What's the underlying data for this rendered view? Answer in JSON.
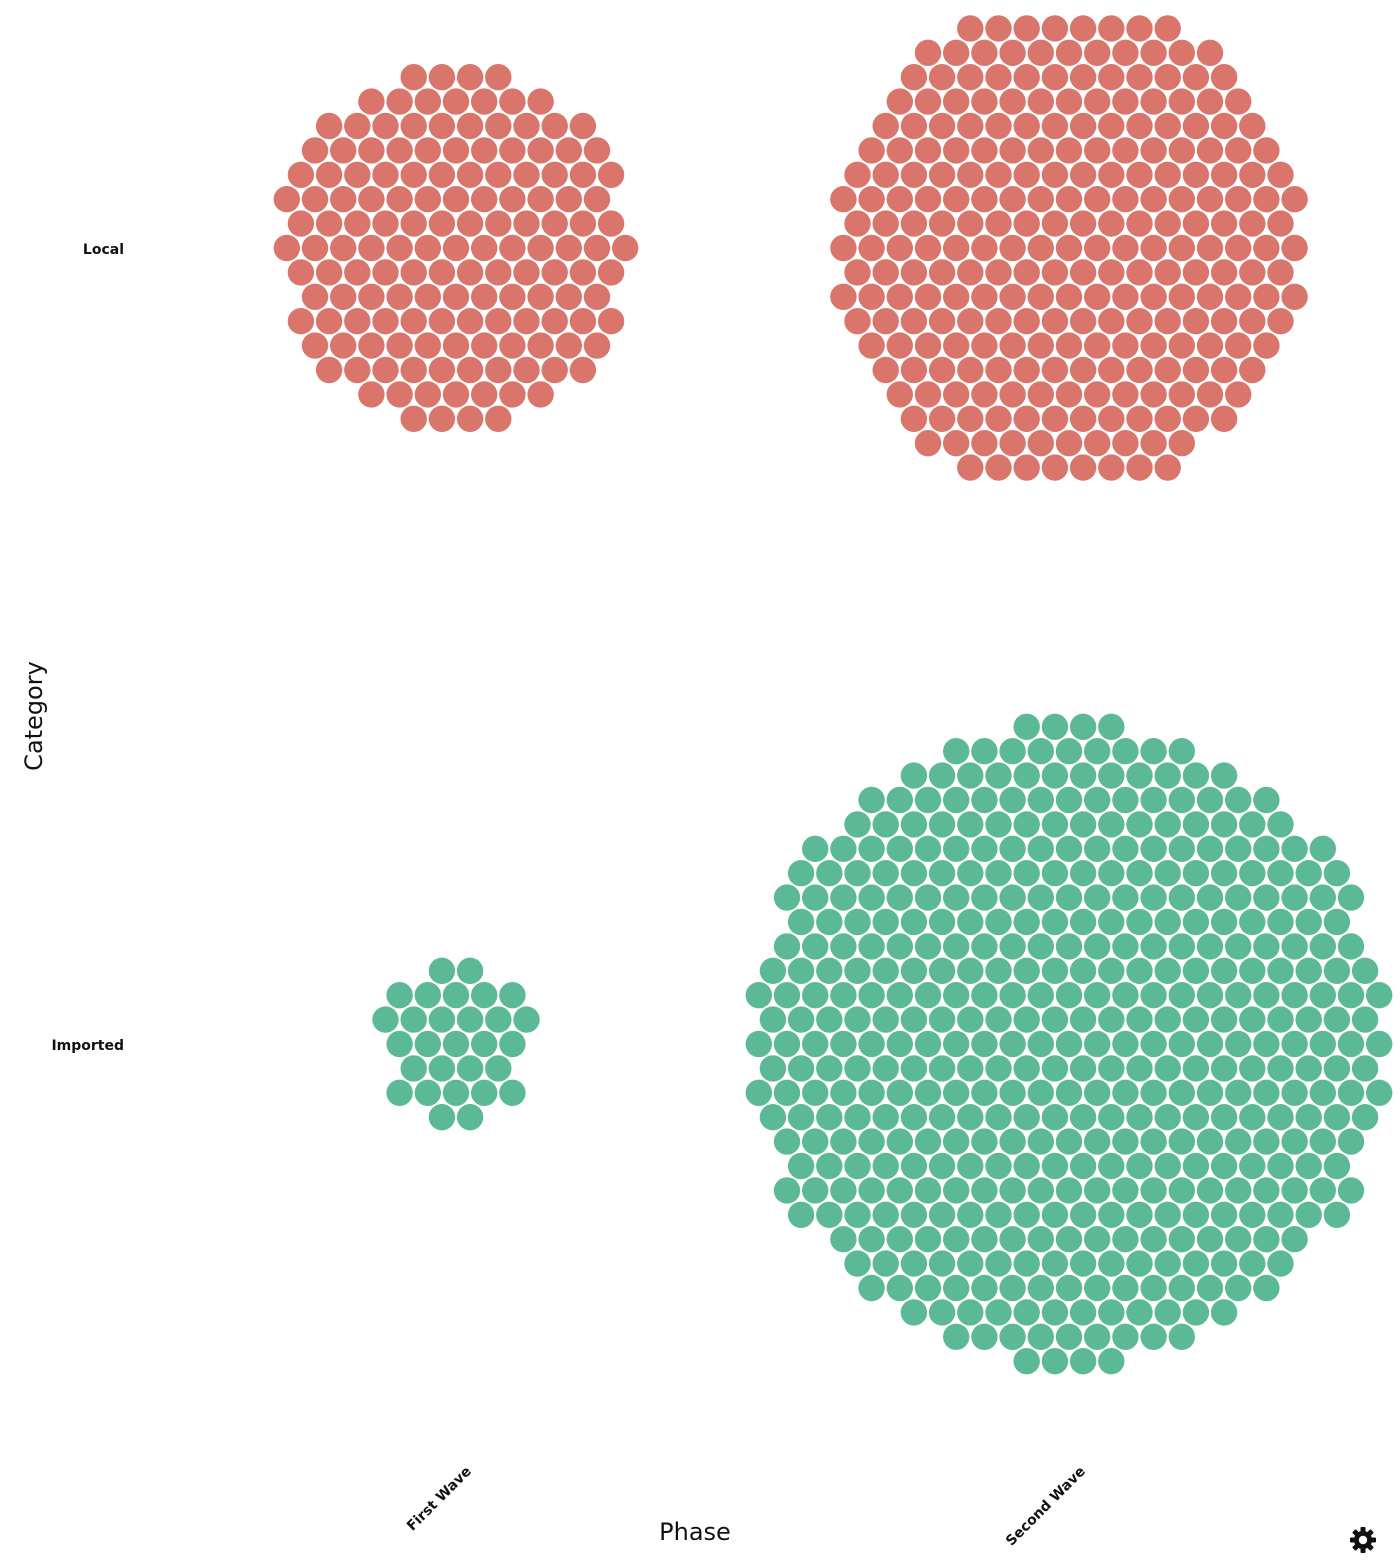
{
  "chart_data": {
    "type": "unit-dot-matrix",
    "x_axis": {
      "title": "Phase",
      "categories": [
        "First Wave",
        "Second Wave"
      ]
    },
    "y_axis": {
      "title": "Category",
      "categories": [
        "Local",
        "Imported"
      ]
    },
    "series": [
      {
        "name": "Local",
        "color": "#d9756a",
        "values": [
          148,
          260
        ]
      },
      {
        "name": "Imported",
        "color": "#5bb996",
        "values": [
          29,
          469
        ]
      }
    ],
    "legend": "none",
    "grid": false
  },
  "icons": {
    "settings": "gear-icon"
  }
}
